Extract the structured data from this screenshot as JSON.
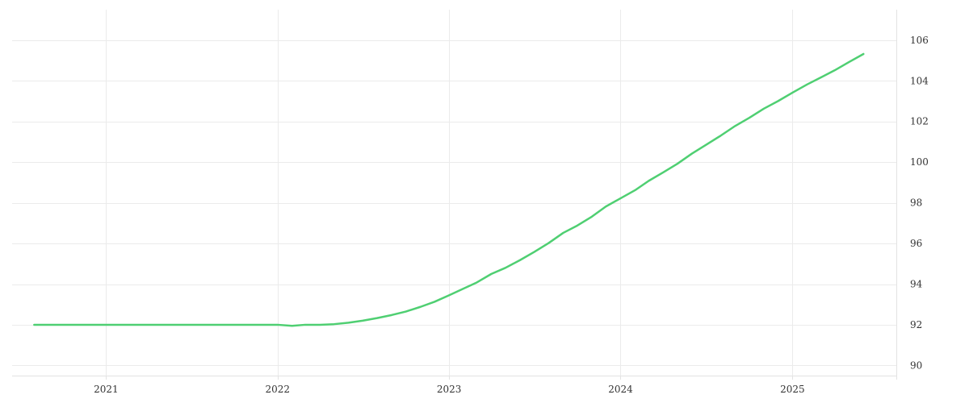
{
  "chart_data": {
    "type": "line",
    "title": "",
    "xlabel": "",
    "ylabel": "",
    "x_ticks": [
      "2021",
      "2022",
      "2023",
      "2024",
      "2025"
    ],
    "y_ticks": [
      90,
      92,
      94,
      96,
      98,
      100,
      102,
      104,
      106
    ],
    "ylim": [
      89.5,
      107.5
    ],
    "xlim": [
      "2020-06-15",
      "2025-08-10"
    ],
    "grid": true,
    "legend": "none",
    "y_axis_position": "right",
    "series": [
      {
        "color": "#4fcf72",
        "x": [
          "2020-08-01",
          "2020-09-01",
          "2020-10-01",
          "2020-11-01",
          "2020-12-01",
          "2021-01-01",
          "2021-02-01",
          "2021-03-01",
          "2021-04-01",
          "2021-05-01",
          "2021-06-01",
          "2021-07-01",
          "2021-08-01",
          "2021-09-01",
          "2021-10-01",
          "2021-11-01",
          "2021-12-01",
          "2022-01-01",
          "2022-02-01",
          "2022-03-01",
          "2022-04-01",
          "2022-05-01",
          "2022-06-01",
          "2022-07-01",
          "2022-08-01",
          "2022-09-01",
          "2022-10-01",
          "2022-11-01",
          "2022-12-01",
          "2023-01-01",
          "2023-02-01",
          "2023-03-01",
          "2023-04-01",
          "2023-05-01",
          "2023-06-01",
          "2023-07-01",
          "2023-08-01",
          "2023-09-01",
          "2023-10-01",
          "2023-11-01",
          "2023-12-01",
          "2024-01-01",
          "2024-02-01",
          "2024-03-01",
          "2024-04-01",
          "2024-05-01",
          "2024-06-01",
          "2024-07-01",
          "2024-08-01",
          "2024-09-01",
          "2024-10-01",
          "2024-11-01",
          "2024-12-01",
          "2025-01-01",
          "2025-02-01",
          "2025-03-01",
          "2025-04-01",
          "2025-05-01",
          "2025-06-01"
        ],
        "values": [
          92.0,
          92.0,
          92.0,
          92.0,
          92.0,
          92.0,
          92.0,
          92.0,
          92.0,
          92.0,
          92.0,
          92.0,
          92.0,
          92.0,
          92.0,
          92.0,
          92.0,
          92.0,
          91.95,
          92.0,
          92.0,
          92.03,
          92.1,
          92.2,
          92.33,
          92.48,
          92.65,
          92.88,
          93.13,
          93.45,
          93.78,
          94.08,
          94.5,
          94.8,
          95.18,
          95.58,
          96.02,
          96.52,
          96.88,
          97.32,
          97.82,
          98.22,
          98.62,
          99.08,
          99.5,
          99.92,
          100.42,
          100.85,
          101.3,
          101.78,
          102.18,
          102.63,
          103.0,
          103.42,
          103.82,
          104.15,
          104.52,
          104.92,
          105.32
        ]
      }
    ]
  }
}
